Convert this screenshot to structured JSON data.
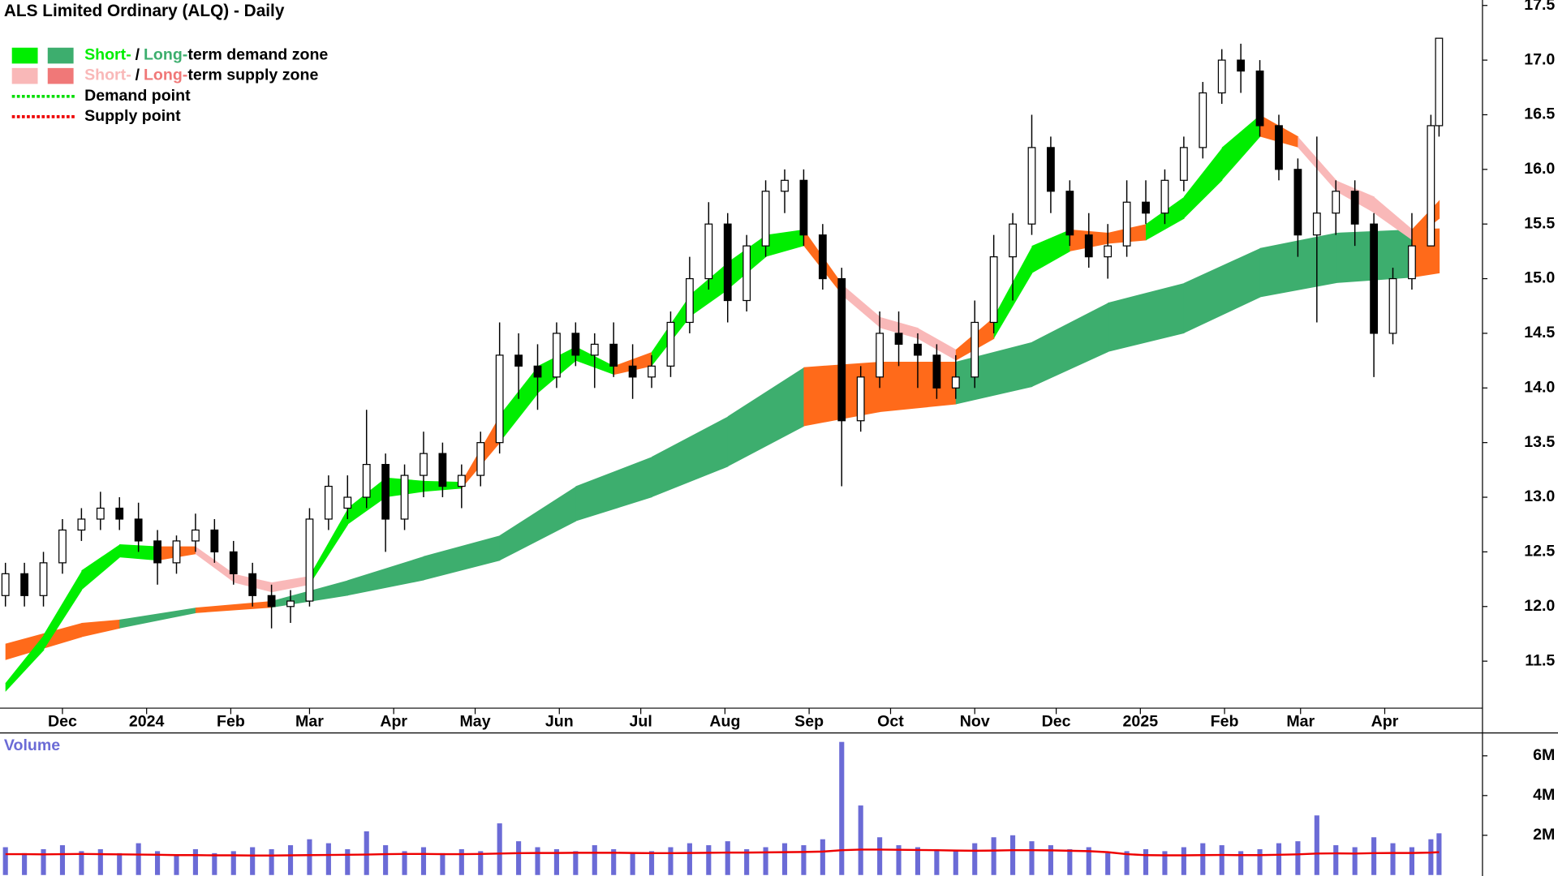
{
  "chart_data": {
    "type": "candlestick",
    "title": "ALS Limited Ordinary (ALQ) - Daily",
    "legend": [
      {
        "parts": [
          "Short-",
          "/",
          "Long-",
          "term demand zone"
        ],
        "part_colors": [
          "#00ee00",
          "#000000",
          "#3dae6e",
          "#000000"
        ],
        "swatches": [
          "#00ee00",
          "#3dae6e"
        ]
      },
      {
        "parts": [
          "Short-",
          "/",
          "Long-",
          "term supply zone"
        ],
        "part_colors": [
          "#f9b8b8",
          "#000000",
          "#f07878",
          "#000000"
        ],
        "swatches": [
          "#f9b8b8",
          "#f07878"
        ]
      },
      {
        "parts": [
          "Demand point"
        ],
        "part_colors": [
          "#000000"
        ],
        "line_color": "#00dd00"
      },
      {
        "parts": [
          "Supply point"
        ],
        "part_colors": [
          "#000000"
        ],
        "line_color": "#ee0000"
      }
    ],
    "xlim": [
      0,
      546
    ],
    "xticks": [
      {
        "value": 23,
        "label": "Dec"
      },
      {
        "value": 54,
        "label": "2024"
      },
      {
        "value": 85,
        "label": "Feb"
      },
      {
        "value": 114,
        "label": "Mar"
      },
      {
        "value": 145,
        "label": "Apr"
      },
      {
        "value": 175,
        "label": "May"
      },
      {
        "value": 206,
        "label": "Jun"
      },
      {
        "value": 236,
        "label": "Jul"
      },
      {
        "value": 267,
        "label": "Aug"
      },
      {
        "value": 298,
        "label": "Sep"
      },
      {
        "value": 328,
        "label": "Oct"
      },
      {
        "value": 359,
        "label": "Nov"
      },
      {
        "value": 389,
        "label": "Dec"
      },
      {
        "value": 420,
        "label": "2025"
      },
      {
        "value": 451,
        "label": "Feb"
      },
      {
        "value": 479,
        "label": "Mar"
      },
      {
        "value": 510,
        "label": "Apr"
      }
    ],
    "ylim": [
      11.07,
      17.55
    ],
    "yticks": [
      11.5,
      {
        "value": 12,
        "label": "12.0"
      },
      12.5,
      {
        "value": 13,
        "label": "13.0"
      },
      13.5,
      {
        "value": 14,
        "label": "14.0"
      },
      14.5,
      {
        "value": 15,
        "label": "15.0"
      },
      15.5,
      {
        "value": 16,
        "label": "16.0"
      },
      16.5,
      {
        "value": 17,
        "label": "17.0"
      },
      17.5
    ],
    "x": [
      2,
      9,
      16,
      23,
      30,
      37,
      44,
      51,
      58,
      65,
      72,
      79,
      86,
      93,
      100,
      107,
      114,
      121,
      128,
      135,
      142,
      149,
      156,
      163,
      170,
      177,
      184,
      191,
      198,
      205,
      212,
      219,
      226,
      233,
      240,
      247,
      254,
      261,
      268,
      275,
      282,
      289,
      296,
      303,
      310,
      317,
      324,
      331,
      338,
      345,
      352,
      359,
      366,
      373,
      380,
      387,
      394,
      401,
      408,
      415,
      422,
      429,
      436,
      443,
      450,
      457,
      464,
      471,
      478,
      485,
      492,
      499,
      506,
      513,
      520,
      527,
      530
    ],
    "open": [
      12.1,
      12.3,
      12.1,
      12.4,
      12.7,
      12.8,
      12.9,
      12.8,
      12.6,
      12.4,
      12.6,
      12.7,
      12.5,
      12.3,
      12.1,
      12.0,
      12.05,
      12.8,
      12.9,
      13.0,
      13.3,
      12.8,
      13.2,
      13.4,
      13.1,
      13.2,
      13.5,
      14.3,
      14.2,
      14.1,
      14.5,
      14.3,
      14.4,
      14.2,
      14.1,
      14.2,
      14.6,
      15.0,
      15.5,
      14.8,
      15.3,
      15.8,
      15.9,
      15.4,
      15.0,
      13.7,
      14.1,
      14.5,
      14.4,
      14.3,
      14.0,
      14.1,
      14.6,
      15.2,
      15.5,
      16.2,
      15.8,
      15.4,
      15.2,
      15.3,
      15.7,
      15.6,
      15.9,
      16.2,
      16.7,
      17.0,
      16.9,
      16.4,
      16.0,
      15.4,
      15.6,
      15.8,
      15.5,
      14.5,
      15.0,
      15.3,
      16.4
    ],
    "high": [
      12.4,
      12.4,
      12.5,
      12.8,
      12.9,
      13.05,
      13.0,
      12.95,
      12.7,
      12.65,
      12.85,
      12.8,
      12.6,
      12.4,
      12.2,
      12.15,
      12.9,
      13.2,
      13.2,
      13.8,
      13.4,
      13.3,
      13.6,
      13.5,
      13.3,
      13.6,
      14.6,
      14.5,
      14.4,
      14.6,
      14.6,
      14.5,
      14.6,
      14.4,
      14.3,
      14.7,
      15.2,
      15.7,
      15.6,
      15.4,
      15.9,
      16.0,
      16.0,
      15.5,
      15.1,
      14.2,
      14.7,
      14.7,
      14.5,
      14.4,
      14.3,
      14.8,
      15.4,
      15.6,
      16.5,
      16.3,
      15.9,
      15.6,
      15.5,
      15.9,
      15.9,
      16.0,
      16.3,
      16.8,
      17.1,
      17.15,
      17.0,
      16.5,
      16.1,
      16.3,
      15.9,
      15.9,
      15.6,
      15.1,
      15.6,
      16.5,
      17.2
    ],
    "low": [
      12.0,
      12.0,
      12.0,
      12.3,
      12.6,
      12.7,
      12.7,
      12.5,
      12.2,
      12.3,
      12.5,
      12.4,
      12.2,
      12.0,
      11.8,
      11.85,
      12.0,
      12.7,
      12.8,
      12.9,
      12.5,
      12.7,
      13.0,
      13.0,
      12.9,
      13.1,
      13.4,
      13.9,
      13.8,
      14.0,
      14.2,
      14.0,
      14.1,
      13.9,
      14.0,
      14.1,
      14.5,
      14.9,
      14.6,
      14.7,
      15.2,
      15.6,
      15.3,
      14.9,
      13.1,
      13.6,
      14.0,
      14.2,
      14.0,
      13.9,
      13.9,
      14.0,
      14.5,
      14.8,
      15.4,
      15.6,
      15.3,
      15.1,
      15.0,
      15.2,
      15.5,
      15.5,
      15.8,
      16.1,
      16.6,
      16.7,
      16.3,
      15.9,
      15.2,
      14.6,
      15.4,
      15.3,
      14.1,
      14.4,
      14.9,
      15.3,
      16.3
    ],
    "close": [
      12.3,
      12.1,
      12.4,
      12.7,
      12.8,
      12.9,
      12.8,
      12.6,
      12.4,
      12.6,
      12.7,
      12.5,
      12.3,
      12.1,
      12.0,
      12.05,
      12.8,
      13.1,
      13.0,
      13.3,
      12.8,
      13.2,
      13.4,
      13.1,
      13.2,
      13.5,
      14.3,
      14.2,
      14.1,
      14.5,
      14.3,
      14.4,
      14.2,
      14.1,
      14.2,
      14.6,
      15.0,
      15.5,
      14.8,
      15.3,
      15.8,
      15.9,
      15.4,
      15.0,
      13.7,
      14.1,
      14.5,
      14.4,
      14.3,
      14.0,
      14.1,
      14.6,
      15.2,
      15.5,
      16.2,
      15.8,
      15.4,
      15.2,
      15.3,
      15.7,
      15.6,
      15.9,
      16.2,
      16.7,
      17.0,
      16.9,
      16.4,
      16.0,
      15.4,
      15.6,
      15.8,
      15.5,
      14.5,
      15.0,
      15.3,
      16.4,
      17.2
    ],
    "short_term_zone": {
      "x": [
        2,
        16,
        30,
        44,
        58,
        72,
        86,
        100,
        114,
        128,
        142,
        156,
        170,
        184,
        198,
        212,
        226,
        240,
        254,
        268,
        282,
        296,
        310,
        324,
        338,
        352,
        366,
        380,
        394,
        408,
        422,
        436,
        450,
        464,
        478,
        492,
        506,
        520,
        530
      ],
      "upper": [
        11.3,
        11.74,
        12.33,
        12.57,
        12.55,
        12.55,
        12.3,
        12.22,
        12.28,
        12.9,
        13.18,
        13.15,
        13.14,
        13.75,
        14.2,
        14.38,
        14.2,
        14.33,
        14.85,
        15.15,
        15.4,
        15.45,
        14.95,
        14.65,
        14.55,
        14.35,
        14.65,
        15.3,
        15.45,
        15.42,
        15.5,
        15.75,
        16.2,
        16.5,
        16.3,
        15.9,
        15.75,
        15.45,
        15.72
      ],
      "lower": [
        11.22,
        11.6,
        12.15,
        12.45,
        12.42,
        12.48,
        12.22,
        12.13,
        12.2,
        12.75,
        13.0,
        13.05,
        13.08,
        13.5,
        13.95,
        14.25,
        14.12,
        14.2,
        14.65,
        14.9,
        15.2,
        15.3,
        14.85,
        14.55,
        14.45,
        14.25,
        14.45,
        15.05,
        15.25,
        15.32,
        15.35,
        15.55,
        15.9,
        16.3,
        16.2,
        15.8,
        15.6,
        15.35,
        15.55
      ],
      "colors": [
        "#00ee00",
        "#00ee00",
        "#00ee00",
        "#00ee00",
        "#ff6a1a",
        "#f9b8b8",
        "#f9b8b8",
        "#f9b8b8",
        "#00ee00",
        "#00ee00",
        "#00ee00",
        "#00ee00",
        "#ff6a1a",
        "#00ee00",
        "#00ee00",
        "#00ee00",
        "#ff6a1a",
        "#00ee00",
        "#00ee00",
        "#00ee00",
        "#00ee00",
        "#ff6a1a",
        "#f9b8b8",
        "#f9b8b8",
        "#f9b8b8",
        "#ff6a1a",
        "#00ee00",
        "#00ee00",
        "#ff6a1a",
        "#ff6a1a",
        "#00ee00",
        "#00ee00",
        "#00ee00",
        "#ff6a1a",
        "#f9b8b8",
        "#f9b8b8",
        "#f9b8b8",
        "#ff6a1a"
      ]
    },
    "long_term_zone": {
      "x": [
        2,
        30,
        44,
        72,
        100,
        128,
        156,
        184,
        212,
        240,
        268,
        296,
        324,
        352,
        380,
        408,
        436,
        464,
        492,
        520,
        530
      ],
      "upper": [
        11.66,
        11.85,
        11.88,
        11.99,
        12.05,
        12.24,
        12.46,
        12.65,
        13.1,
        13.37,
        13.74,
        14.19,
        14.24,
        14.24,
        14.42,
        14.78,
        14.96,
        15.28,
        15.42,
        15.45,
        15.46
      ],
      "lower": [
        11.51,
        11.72,
        11.8,
        11.94,
        11.99,
        12.1,
        12.24,
        12.42,
        12.78,
        13.0,
        13.28,
        13.65,
        13.78,
        13.85,
        14.01,
        14.33,
        14.5,
        14.83,
        14.96,
        15.01,
        15.05
      ],
      "colors": [
        "#ff6a1a",
        "#ff6a1a",
        "#3dae6e",
        "#ff6a1a",
        "#3dae6e",
        "#3dae6e",
        "#3dae6e",
        "#3dae6e",
        "#3dae6e",
        "#3dae6e",
        "#3dae6e",
        "#ff6a1a",
        "#ff6a1a",
        "#3dae6e",
        "#3dae6e",
        "#3dae6e",
        "#3dae6e",
        "#3dae6e",
        "#3dae6e",
        "#ff6a1a"
      ]
    },
    "volume": {
      "label": "Volume",
      "color": "#6b6bd6",
      "ma_color": "#ee0000",
      "ylim": [
        0,
        7150000
      ],
      "yticks": [
        {
          "value": 2000000,
          "label": "2M"
        },
        {
          "value": 4000000,
          "label": "4M"
        },
        {
          "value": 6000000,
          "label": "6M"
        }
      ],
      "values": [
        1400000,
        1100000,
        1300000,
        1500000,
        1200000,
        1300000,
        1100000,
        1600000,
        1200000,
        1000000,
        1300000,
        1100000,
        1200000,
        1400000,
        1300000,
        1500000,
        1800000,
        1600000,
        1300000,
        2200000,
        1500000,
        1200000,
        1400000,
        1100000,
        1300000,
        1200000,
        2600000,
        1700000,
        1400000,
        1300000,
        1200000,
        1500000,
        1300000,
        1100000,
        1200000,
        1400000,
        1600000,
        1500000,
        1700000,
        1300000,
        1400000,
        1600000,
        1500000,
        1800000,
        6700000,
        3500000,
        1900000,
        1500000,
        1400000,
        1300000,
        1200000,
        1600000,
        1900000,
        2000000,
        1700000,
        1500000,
        1300000,
        1400000,
        1100000,
        1200000,
        1300000,
        1200000,
        1400000,
        1600000,
        1500000,
        1200000,
        1300000,
        1600000,
        1700000,
        3000000,
        1500000,
        1400000,
        1900000,
        1600000,
        1400000,
        1800000,
        2100000
      ],
      "ma": [
        1050000,
        1050000,
        1040000,
        1050000,
        1060000,
        1050000,
        1040000,
        1030000,
        1020000,
        1000000,
        1000000,
        990000,
        990000,
        980000,
        980000,
        990000,
        1000000,
        1010000,
        1020000,
        1030000,
        1050000,
        1060000,
        1060000,
        1050000,
        1050000,
        1060000,
        1080000,
        1100000,
        1110000,
        1110000,
        1120000,
        1120000,
        1120000,
        1110000,
        1100000,
        1100000,
        1110000,
        1120000,
        1130000,
        1130000,
        1140000,
        1150000,
        1160000,
        1180000,
        1250000,
        1280000,
        1280000,
        1270000,
        1260000,
        1250000,
        1230000,
        1220000,
        1230000,
        1250000,
        1250000,
        1240000,
        1220000,
        1200000,
        1150000,
        1050000,
        1000000,
        990000,
        990000,
        1000000,
        1010000,
        1000000,
        1000000,
        1020000,
        1040000,
        1080000,
        1090000,
        1080000,
        1100000,
        1110000,
        1110000,
        1130000,
        1150000
      ]
    }
  }
}
